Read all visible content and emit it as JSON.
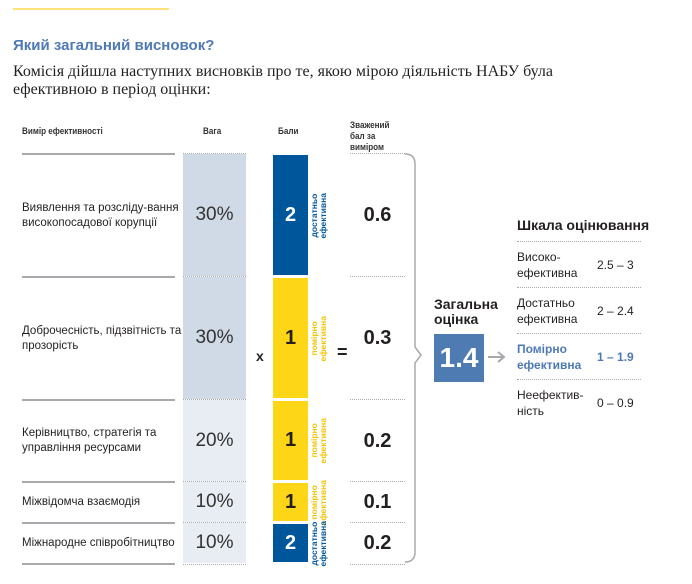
{
  "heading": "Який  загальний висновок?",
  "intro": "Комісія дійшла наступних висновків про те, якою мірою діяльність НАБУ була ефективною в період оцінки:",
  "headers": {
    "dimension": "Вимір ефективності",
    "weight": "Вага",
    "score": "Бали",
    "weighted": "Зважений бал за виміром"
  },
  "rows": [
    {
      "dimension": "Виявлення та розсліду-вання високопосадової корупції",
      "weight": "30%",
      "score": "2",
      "score_label": "достатньо\nефективна",
      "weighted": "0.6"
    },
    {
      "dimension": "Доброчесність, підзвітність та прозорість",
      "weight": "30%",
      "score": "1",
      "score_label": "помірно\nефективна",
      "weighted": "0.3"
    },
    {
      "dimension": "Керівництво, стратегія та управління ресурсами",
      "weight": "20%",
      "score": "1",
      "score_label": "помірно\nефективна",
      "weighted": "0.2"
    },
    {
      "dimension": "Міжвідомча взаємодія",
      "weight": "10%",
      "score": "1",
      "score_label": "помірно\nефективна",
      "weighted": "0.1"
    },
    {
      "dimension": "Міжнародне співробітництво",
      "weight": "10%",
      "score": "2",
      "score_label": "достатньо\nефективна",
      "weighted": "0.2"
    }
  ],
  "operators": {
    "times": "x",
    "equals": "="
  },
  "total": {
    "label": "Загальна оцінка",
    "value": "1.4"
  },
  "scale": {
    "title": "Шкала оцінювання",
    "items": [
      {
        "name": "Високо-ефективна",
        "range": "2.5 – 3"
      },
      {
        "name": "Достатньо ефективна",
        "range": "2 – 2.4"
      },
      {
        "name": "Помірно ефективна",
        "range": "1 – 1.9",
        "highlight": true
      },
      {
        "name": "Неефектив-ність",
        "range": "0 – 0.9"
      }
    ]
  },
  "colors": {
    "blue": "#00569b",
    "yellow": "#fcd617",
    "accent": "#4e79b5",
    "weight_dark": "#d0d9e6",
    "weight_light": "#e8edf4"
  }
}
